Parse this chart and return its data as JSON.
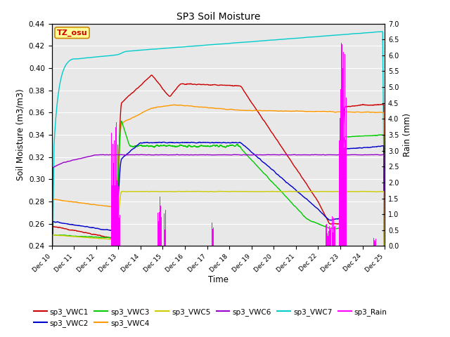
{
  "title": "SP3 Soil Moisture",
  "xlabel": "Time",
  "ylabel_left": "Soil Moisture (m3/m3)",
  "ylabel_right": "Rain (mm)",
  "ylim_left": [
    0.24,
    0.44
  ],
  "ylim_right": [
    0.0,
    7.0
  ],
  "xtick_labels": [
    "Dec 10",
    "Dec 11",
    "Dec 12",
    "Dec 13",
    "Dec 14",
    "Dec 15",
    "Dec 16",
    "Dec 17",
    "Dec 18",
    "Dec 19",
    "Dec 20",
    "Dec 21",
    "Dec 22",
    "Dec 23",
    "Dec 24",
    "Dec 25"
  ],
  "yticks_left": [
    0.24,
    0.26,
    0.28,
    0.3,
    0.32,
    0.34,
    0.36,
    0.38,
    0.4,
    0.42,
    0.44
  ],
  "yticks_right": [
    0.0,
    0.5,
    1.0,
    1.5,
    2.0,
    2.5,
    3.0,
    3.5,
    4.0,
    4.5,
    5.0,
    5.5,
    6.0,
    6.5,
    7.0
  ],
  "annotation_text": "TZ_osu",
  "annotation_color": "#cc0000",
  "annotation_bg": "#ffff99",
  "bg_color": "#e8e8e8",
  "colors": {
    "sp3_VWC1": "#cc0000",
    "sp3_VWC2": "#0000cc",
    "sp3_VWC3": "#00cc00",
    "sp3_VWC4": "#ff9900",
    "sp3_VWC5": "#cccc00",
    "sp3_VWC6": "#9900cc",
    "sp3_VWC7": "#00cccc",
    "sp3_Rain": "#ff00ff"
  },
  "legend_order": [
    "sp3_VWC1",
    "sp3_VWC2",
    "sp3_VWC3",
    "sp3_VWC4",
    "sp3_VWC5",
    "sp3_VWC6",
    "sp3_VWC7",
    "sp3_Rain"
  ]
}
